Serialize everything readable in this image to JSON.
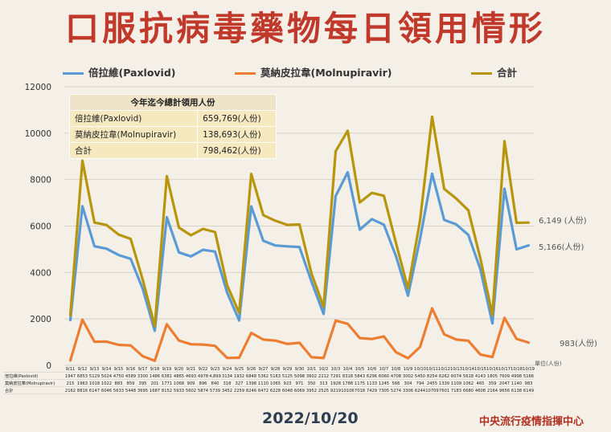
{
  "title": "口服抗病毒藥物每日領用情形",
  "date": "2022/10/20",
  "organization": "中央流行疫情指揮中心",
  "unit_note": "單位(人份)",
  "colors": {
    "paxlovid": "#5b9bd5",
    "molnupiravir": "#ed7d31",
    "total": "#b8960c"
  },
  "legend": [
    {
      "label": "倍拉維(Paxlovid)",
      "key": "paxlovid"
    },
    {
      "label": "莫納皮拉韋(Molnupiravir)",
      "key": "molnupiravir"
    },
    {
      "label": "合計",
      "key": "total"
    }
  ],
  "summary": {
    "header": "今年迄今總計領用人份",
    "rows": [
      {
        "label": "倍拉維(Paxlovid)",
        "value": "659,769(人份)"
      },
      {
        "label": "莫納皮拉韋(Molnupiravir)",
        "value": "138,693(人份)"
      },
      {
        "label": "合計",
        "value": "798,462(人份)"
      }
    ]
  },
  "end_labels": {
    "total": "6,149 (人份)",
    "paxlovid": "5,166(人份)",
    "molnupiravir": "983(人份)"
  },
  "table_row_labels": [
    "倍拉維(Paxlovid)",
    "莫納皮拉韋(Molnupiravir)",
    "合計"
  ],
  "chart_data": {
    "type": "line",
    "x": [
      "9/11",
      "9/12",
      "9/13",
      "9/14",
      "9/15",
      "9/16",
      "9/17",
      "9/18",
      "9/19",
      "9/20",
      "9/21",
      "9/22",
      "9/23",
      "9/24",
      "9/25",
      "9/26",
      "9/27",
      "9/28",
      "9/29",
      "9/30",
      "10/1",
      "10/2",
      "10/3",
      "10/4",
      "10/5",
      "10/6",
      "10/7",
      "10/8",
      "10/9",
      "10/10",
      "10/11",
      "10/12",
      "10/13",
      "10/14",
      "10/15",
      "10/16",
      "10/17",
      "10/18",
      "10/19"
    ],
    "ylim": [
      0,
      12000
    ],
    "yticks": [
      0,
      2000,
      4000,
      6000,
      8000,
      10000,
      12000
    ],
    "grid": true,
    "legend_position": "top",
    "series": [
      {
        "name": "倍拉維(Paxlovid)",
        "key": "paxlovid",
        "values": [
          1947,
          6853,
          5129,
          5024,
          4750,
          4589,
          3300,
          1486,
          6381,
          4865,
          4693,
          4978,
          4899,
          3134,
          1932,
          6848,
          5362,
          5163,
          5125,
          5098,
          3602,
          2212,
          7291,
          8318,
          5843,
          6296,
          6060,
          4708,
          3002,
          5450,
          8254,
          6262,
          6074,
          5618,
          4143,
          1805,
          7609,
          4998,
          5166
        ],
        "table": [
          "1947",
          "6853",
          "5129",
          "5024",
          "4750",
          "4589",
          "3300",
          "1486",
          "6381",
          "4865",
          "4693",
          "4978",
          "4,899",
          "3134",
          "1932",
          "6848",
          "5362",
          "5163",
          "5125",
          "5098",
          "3602",
          "2212",
          "7291",
          "8318",
          "5843",
          "6296",
          "6060",
          "4708",
          "3002",
          "5450",
          "8254",
          "6262",
          "6074",
          "5618",
          "4143",
          "1805",
          "7609",
          "4998",
          "5166"
        ]
      },
      {
        "name": "莫納皮拉韋(Molnupiravir)",
        "key": "molnupiravir",
        "values": [
          215,
          1963,
          1018,
          1022,
          883,
          859,
          395,
          201,
          1771,
          1068,
          909,
          896,
          840,
          318,
          327,
          1398,
          1110,
          1065,
          923,
          971,
          350,
          313,
          1928,
          1788,
          1175,
          1133,
          1245,
          566,
          304,
          794,
          2455,
          1339,
          1109,
          1062,
          465,
          359,
          2047,
          1140,
          983
        ],
        "table": [
          "215",
          "1963",
          "1018",
          "1022",
          "883",
          "859",
          "395",
          "201",
          "1771",
          "1068",
          "909",
          "896",
          "840",
          "318",
          "327",
          "1398",
          "1110",
          "1065",
          "923",
          "971",
          "350",
          "313",
          "1928",
          "1788",
          "1175",
          "1133",
          "1245",
          "566",
          "304",
          "794",
          "2455",
          "1339",
          "1109",
          "1062",
          "465",
          "359",
          "2047",
          "1140",
          "983"
        ]
      },
      {
        "name": "合計",
        "key": "total",
        "values": [
          2162,
          8816,
          6147,
          6046,
          5633,
          5448,
          3695,
          1687,
          8152,
          5933,
          5602,
          5874,
          5739,
          3452,
          2259,
          8246,
          6472,
          6228,
          6048,
          6069,
          3952,
          2525,
          9219,
          10106,
          7018,
          7429,
          7305,
          5274,
          3306,
          6244,
          10709,
          7601,
          7183,
          6680,
          4608,
          2164,
          9656,
          6138,
          6149
        ],
        "table": [
          "2162",
          "8816",
          "6147",
          "6046",
          "5633",
          "5448",
          "3695",
          "1687",
          "8152",
          "5933",
          "5602",
          "5874",
          "5739",
          "3452",
          "2259",
          "8246",
          "6472",
          "6228",
          "6048",
          "6069",
          "3952",
          "2525",
          "9219",
          "10106",
          "7018",
          "7429",
          "7305",
          "5274",
          "3306",
          "6244",
          "10709",
          "7601",
          "7183",
          "6680",
          "4608",
          "2164",
          "9656",
          "6138",
          "6149"
        ]
      }
    ]
  }
}
